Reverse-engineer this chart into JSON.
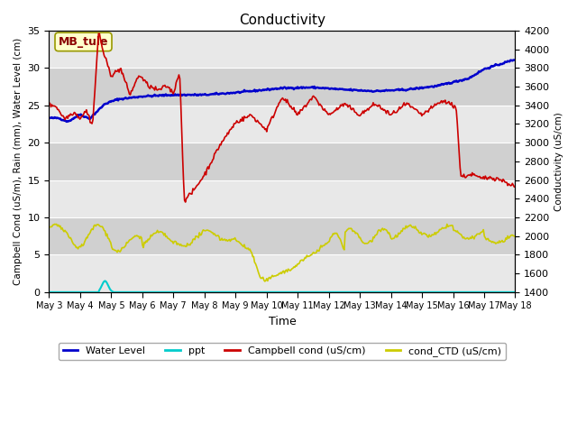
{
  "title": "Conductivity",
  "xlabel": "Time",
  "ylabel_left": "Campbell Cond (uS/m), Rain (mm), Water Level (cm)",
  "ylabel_right": "Conductivity (uS/cm)",
  "annotation": "MB_tule",
  "ylim_left": [
    0,
    35
  ],
  "ylim_right": [
    1400,
    4200
  ],
  "background_color": "#ffffff",
  "plot_bg_light": "#e8e8e8",
  "plot_bg_dark": "#d0d0d0",
  "grid_color": "#ffffff",
  "x_tick_labels": [
    "May 3",
    "May 4",
    "May 5",
    "May 6",
    "May 7",
    "May 8",
    "May 9",
    "May 10",
    "May 11",
    "May 12",
    "May 13",
    "May 14",
    "May 15",
    "May 16",
    "May 17",
    "May 18"
  ],
  "water_level_color": "#0000cc",
  "ppt_color": "#00cccc",
  "campbell_color": "#cc0000",
  "ctd_color": "#cccc00",
  "legend_entries": [
    "Water Level",
    "ppt",
    "Campbell cond (uS/cm)",
    "cond_CTD (uS/cm)"
  ],
  "band_edges": [
    0,
    5,
    10,
    15,
    20,
    25,
    30,
    35
  ]
}
